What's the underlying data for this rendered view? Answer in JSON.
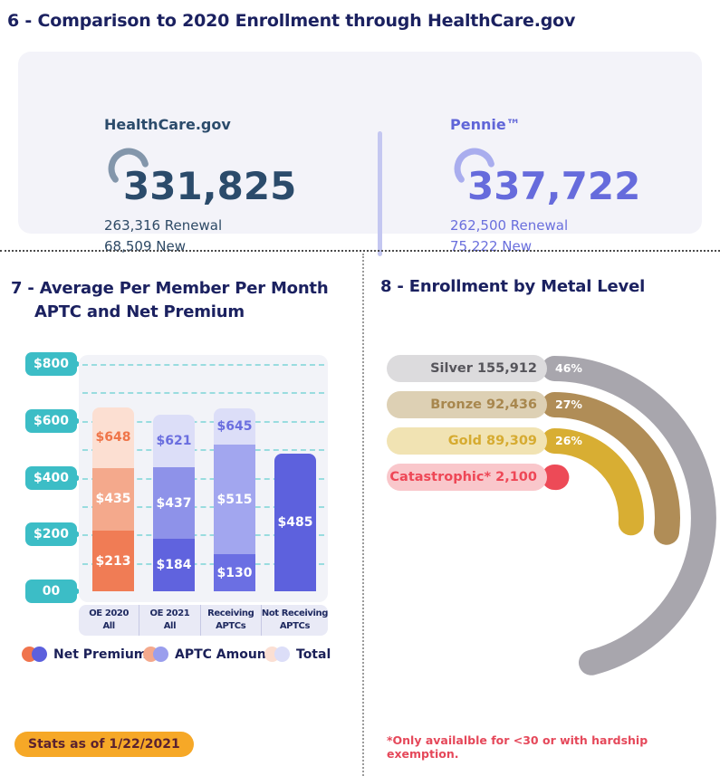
{
  "header": {
    "section6_title": "6 - Comparison to 2020 Enrollment through HealthCare.gov"
  },
  "comparison": {
    "left": {
      "name": "HealthCare.gov",
      "total": "331,825",
      "renewal": "263,316 Renewal",
      "new": "68,509 New",
      "accent": "#2b4b6b",
      "arc_color": "#8396ab"
    },
    "right": {
      "name": "Pennie™",
      "total": "337,722",
      "renewal": "262,500 Renewal",
      "new": "75,222 New",
      "accent": "#666bdc",
      "arc_color": "#a9adee"
    }
  },
  "left_panel": {
    "title_line1": "7 - Average Per Member Per Month",
    "title_line2": "APTC and Net Premium",
    "stats_badge": "Stats as of 1/22/2021"
  },
  "right_panel": {
    "title": "8 - Enrollment by Metal Level",
    "footnote": "*Only availalble for <30 or with hardship exemption."
  },
  "chart_data": [
    {
      "type": "bar",
      "title": "Average Per Member Per Month APTC and Net Premium",
      "ylim": [
        0,
        800
      ],
      "grid": "dashed horizontal lines every $100, teal",
      "yticks": [
        {
          "label": "$800",
          "value": 800
        },
        {
          "label": "$600",
          "value": 600
        },
        {
          "label": "$400",
          "value": 400
        },
        {
          "label": "$200",
          "value": 200
        },
        {
          "label": "00",
          "value": 0
        }
      ],
      "categories": [
        "OE 2020 All",
        "OE 2021 All",
        "Receiving APTCs",
        "Not Receiving APTCs"
      ],
      "category_lines": [
        [
          "OE 2020",
          "All"
        ],
        [
          "OE 2021",
          "All"
        ],
        [
          "Receiving",
          "APTCs"
        ],
        [
          "Not Receiving",
          "APTCs"
        ]
      ],
      "series": [
        {
          "name": "Total",
          "values": [
            648,
            621,
            645,
            null
          ],
          "labels": [
            "$648",
            "$621",
            "$645",
            null
          ]
        },
        {
          "name": "APTC Amount",
          "values": [
            435,
            437,
            515,
            null
          ],
          "labels": [
            "$435",
            "$437",
            "$515",
            null
          ]
        },
        {
          "name": "Net Premium",
          "values": [
            213,
            184,
            130,
            485
          ],
          "labels": [
            "$213",
            "$184",
            "$130",
            "$485"
          ]
        }
      ],
      "bar_colors": [
        {
          "total": "#fcdfd2",
          "aptc": "#f4a98c",
          "net": "#f07c55",
          "total_label": "#ef7549"
        },
        {
          "total": "#dcdef8",
          "aptc": "#8e92e9",
          "net": "#6063de",
          "total_label": "#6a6edf"
        },
        {
          "total": "#dcdef8",
          "aptc": "#a2a6ef",
          "net": "#6b6fe3",
          "total_label": "#6a6edf"
        },
        {
          "net": "#5d61dd"
        }
      ],
      "legend_position": "bottom",
      "legend": [
        {
          "label": "Net Premium",
          "colors": [
            "#f0744d",
            "#5c60dd"
          ]
        },
        {
          "label": "APTC Amount",
          "colors": [
            "#f4a98c",
            "#9a9eed"
          ]
        },
        {
          "label": "Total",
          "colors": [
            "#fbdfd3",
            "#dcdef8"
          ]
        }
      ],
      "axis_badge_color": "#3cbdc6"
    },
    {
      "type": "radial-bar",
      "title": "Enrollment by Metal Level",
      "categories": [
        "Silver",
        "Bronze",
        "Gold",
        "Catastrophic*"
      ],
      "values": [
        155912,
        92436,
        89309,
        2100
      ],
      "row_labels": [
        "Silver 155,912",
        "Bronze 92,436",
        "Gold 89,309",
        "Catastrophic* 2,100"
      ],
      "pct": [
        46,
        27,
        26,
        null
      ],
      "pct_labels": [
        "46%",
        "27%",
        "26%",
        null
      ],
      "colors": [
        {
          "pill": "#dcdbdd",
          "text": "#56555b",
          "arc": "#a8a6ad"
        },
        {
          "pill": "#ddd0b4",
          "text": "#a8874e",
          "arc": "#b08d57"
        },
        {
          "pill": "#f1e3b3",
          "text": "#d6ab31",
          "arc": "#d8ae33"
        },
        {
          "pill": "#f9c7cb",
          "text": "#ee4756",
          "arc": "#ed4a57"
        }
      ]
    }
  ]
}
